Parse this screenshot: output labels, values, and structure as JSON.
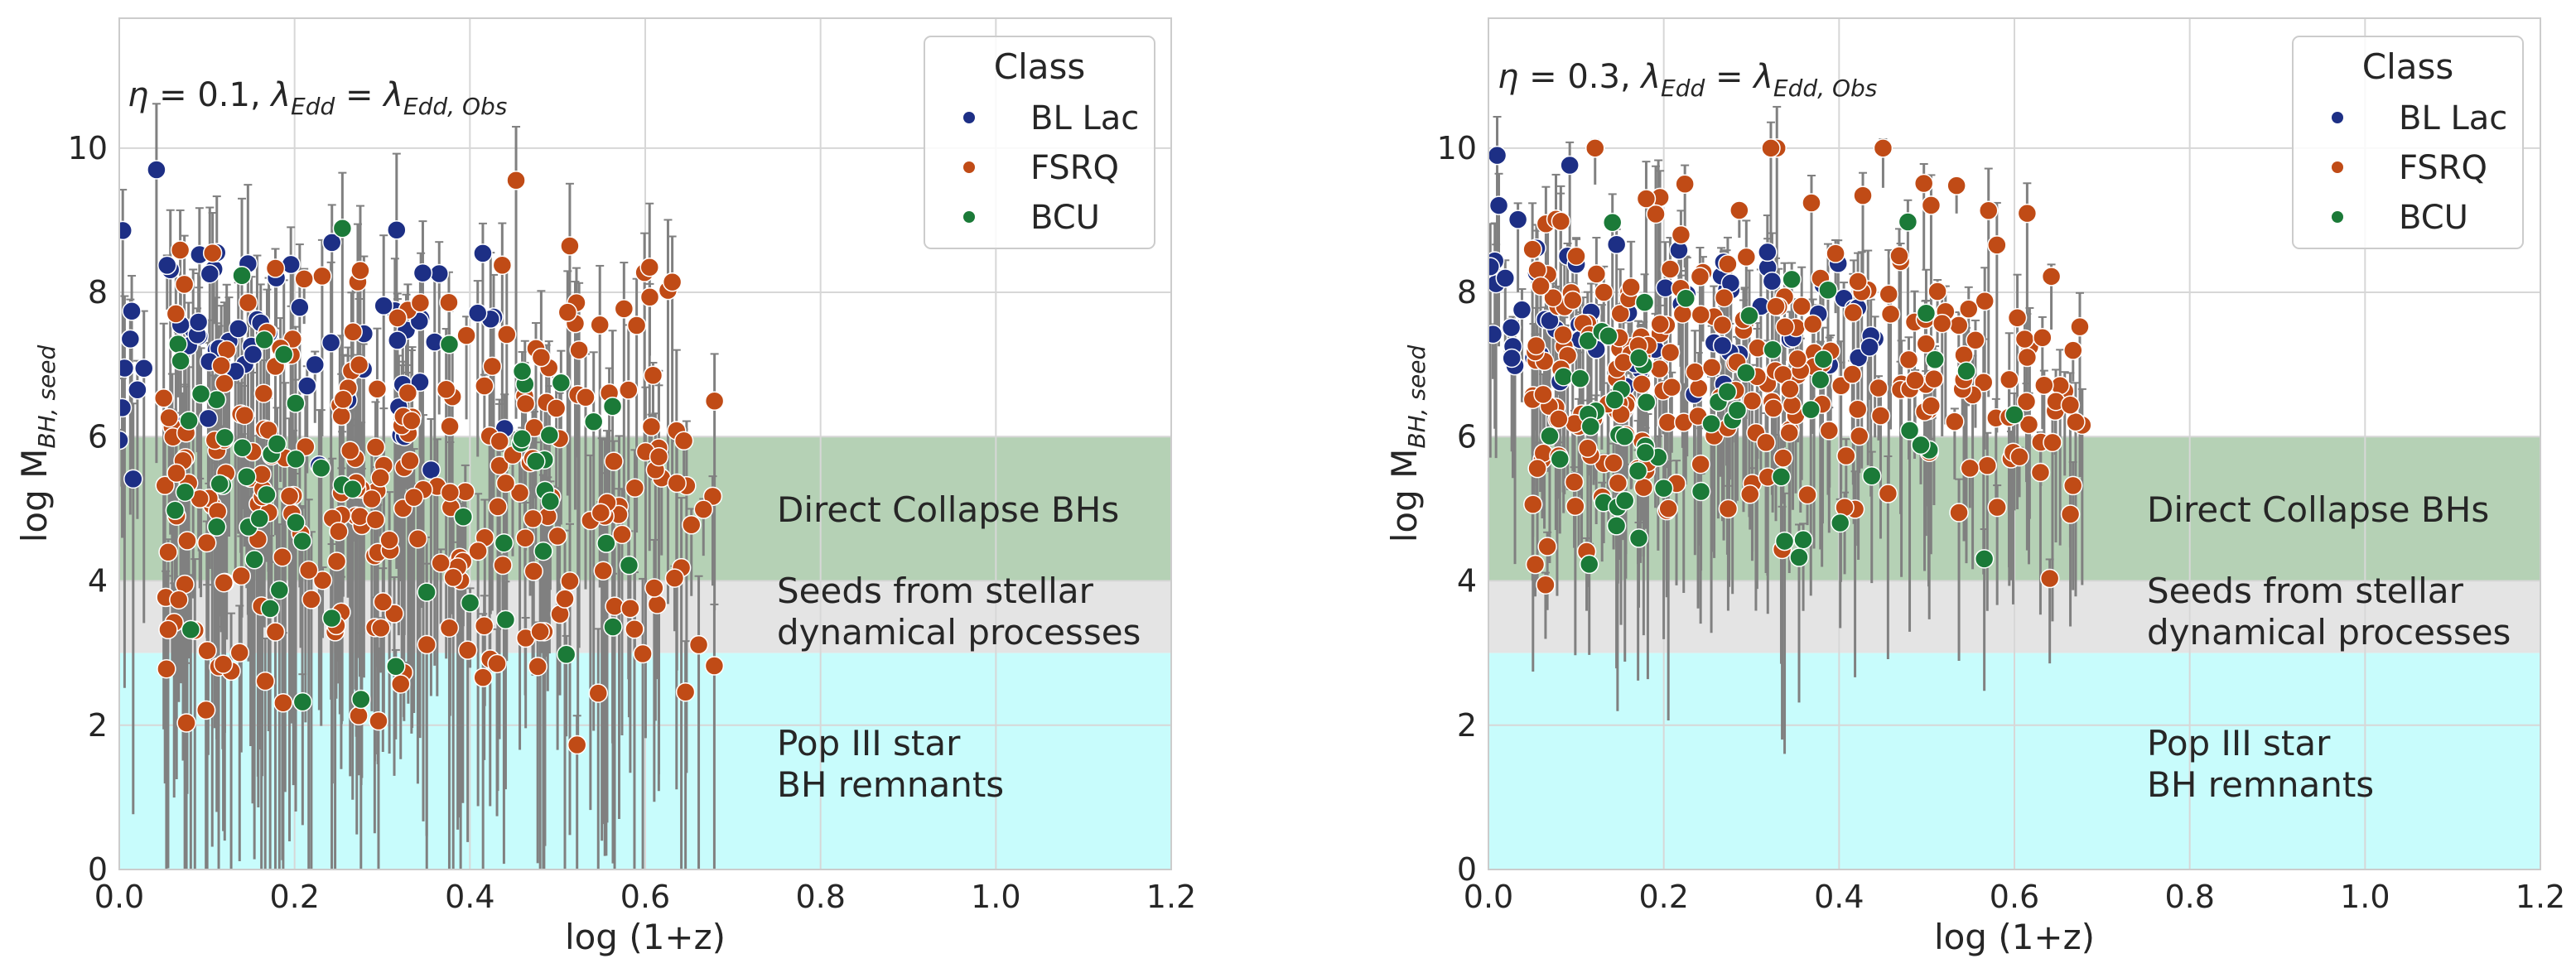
{
  "chart_data": [
    {
      "type": "scatter",
      "title": "η = 0.1, λ_Edd = λ_Edd,Obs",
      "title_eta": "0.1",
      "xlabel": "log (1+z)",
      "ylabel": "log M_BH,seed",
      "xlim": [
        0.0,
        1.2
      ],
      "ylim": [
        0,
        11.8
      ],
      "xticks": [
        "0.0",
        "0.2",
        "0.4",
        "0.6",
        "0.8",
        "1.0",
        "1.2"
      ],
      "yticks": [
        "0",
        "2",
        "4",
        "6",
        "8",
        "10"
      ],
      "grid": true,
      "legend_position": "top-right",
      "regions": [
        {
          "name": "Direct Collapse BHs",
          "lines": [
            "Direct Collapse BHs"
          ],
          "y0": 4,
          "y1": 6,
          "color": "#b5d1b5"
        },
        {
          "name": "Seeds from stellar dynamical processes",
          "lines": [
            "Seeds from stellar",
            "dynamical processes"
          ],
          "y0": 3,
          "y1": 4,
          "color": "#e4e4e4"
        },
        {
          "name": "Pop III star BH remnants",
          "lines": [
            "Pop III star",
            "BH remnants"
          ],
          "y0": 0,
          "y1": 3,
          "color": "#c8fcfc"
        }
      ],
      "spread": 1.0,
      "series": [
        {
          "name": "BL Lac",
          "color": "#1d2f85",
          "seed": 11,
          "n": 70,
          "x_range": [
            0.0,
            0.45
          ],
          "y_center": 7.3,
          "y_spread": 1.4
        },
        {
          "name": "FSRQ",
          "color": "#c04b16",
          "seed": 23,
          "n": 260,
          "x_range": [
            0.05,
            0.68
          ],
          "y_center": 5.2,
          "y_spread": 2.8
        },
        {
          "name": "BCU",
          "color": "#1b7a38",
          "seed": 37,
          "n": 60,
          "x_range": [
            0.05,
            0.6
          ],
          "y_center": 5.0,
          "y_spread": 2.6
        }
      ]
    },
    {
      "type": "scatter",
      "title": "η = 0.3, λ_Edd = λ_Edd,Obs",
      "title_eta": "0.3",
      "xlabel": "log (1+z)",
      "ylabel": "log M_BH,seed",
      "xlim": [
        0.0,
        1.2
      ],
      "ylim": [
        0,
        11.8
      ],
      "xticks": [
        "0.0",
        "0.2",
        "0.4",
        "0.6",
        "0.8",
        "1.0",
        "1.2"
      ],
      "yticks": [
        "0",
        "2",
        "4",
        "6",
        "8",
        "10"
      ],
      "grid": true,
      "legend_position": "top-right",
      "regions": [
        {
          "name": "Direct Collapse BHs",
          "lines": [
            "Direct Collapse BHs"
          ],
          "y0": 4,
          "y1": 6,
          "color": "#b5d1b5"
        },
        {
          "name": "Seeds from stellar dynamical processes",
          "lines": [
            "Seeds from stellar",
            "dynamical processes"
          ],
          "y0": 3,
          "y1": 4,
          "color": "#e4e4e4"
        },
        {
          "name": "Pop III star BH remnants",
          "lines": [
            "Pop III star",
            "BH remnants"
          ],
          "y0": 0,
          "y1": 3,
          "color": "#c8fcfc"
        }
      ],
      "spread": 0.6,
      "series": [
        {
          "name": "BL Lac",
          "color": "#1d2f85",
          "seed": 11,
          "n": 70,
          "x_range": [
            0.0,
            0.45
          ],
          "y_center": 7.6,
          "y_spread": 1.0
        },
        {
          "name": "FSRQ",
          "color": "#c04b16",
          "seed": 23,
          "n": 260,
          "x_range": [
            0.05,
            0.68
          ],
          "y_center": 6.6,
          "y_spread": 2.2
        },
        {
          "name": "BCU",
          "color": "#1b7a38",
          "seed": 37,
          "n": 60,
          "x_range": [
            0.05,
            0.6
          ],
          "y_center": 6.0,
          "y_spread": 2.2
        }
      ]
    }
  ],
  "legend": {
    "title": "Class",
    "items": [
      "BL Lac",
      "FSRQ",
      "BCU"
    ]
  }
}
